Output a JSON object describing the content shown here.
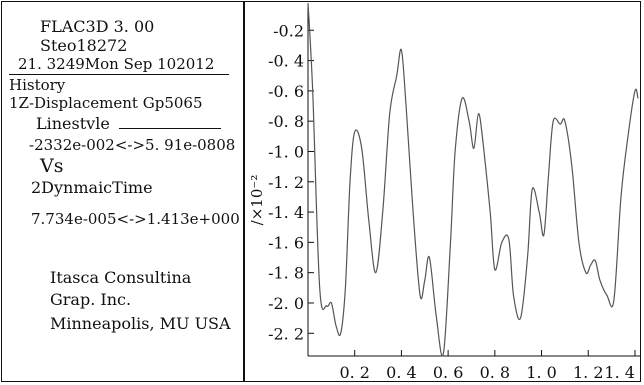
{
  "legend": {
    "software": "FLAC3D 3. 00",
    "step": "Steo18272",
    "timestamp": "21. 3249Mon Sep 102012",
    "history_heading": "History",
    "history_item": "1Z-Displacement Gp5065",
    "linestyle_label": "Linestvle",
    "y_range": "-2332e-002<->5. 91e-0808",
    "vs_label": "Vs",
    "x_quantity": "2DynmaicTime",
    "x_range": "7.734e-005<->1.413e+000",
    "company_1": "Itasca Consultina",
    "company_2": "Grap. Inc.",
    "company_3": "Minneapolis, MU  USA"
  },
  "chart_data": {
    "type": "line",
    "title": "",
    "xlabel": "",
    "ylabel": "/×10⁻²",
    "xlim": [
      0.0,
      1.413
    ],
    "ylim": [
      -2.35,
      -0.02
    ],
    "x_ticks": [
      0.2,
      0.4,
      0.6,
      0.8,
      1.0,
      1.2,
      1.4
    ],
    "x_tick_labels": [
      "0. 2",
      "0. 4",
      "0. 6",
      "0. 8",
      "1. 0",
      "1. 2",
      "1. 4"
    ],
    "y_ticks": [
      -0.2,
      -0.4,
      -0.6,
      -0.8,
      -1.0,
      -1.2,
      -1.4,
      -1.6,
      -1.8,
      -2.0,
      -2.2
    ],
    "y_tick_labels": [
      "-0.2",
      "-0. 4",
      "-0. 6",
      "-0. 8",
      "-1. 0",
      "-1. 2",
      "-1. 4",
      "-1. 6",
      "-1. 8",
      "-2. 0",
      "-2. 2"
    ],
    "grid": false,
    "line_color": "#555555",
    "series": [
      {
        "x": [
          0.0,
          0.02,
          0.05,
          0.08,
          0.1,
          0.12,
          0.14,
          0.16,
          0.18,
          0.2,
          0.23,
          0.26,
          0.29,
          0.32,
          0.35,
          0.38,
          0.4,
          0.42,
          0.45,
          0.48,
          0.5,
          0.52,
          0.55,
          0.58,
          0.61,
          0.63,
          0.66,
          0.69,
          0.71,
          0.73,
          0.75,
          0.78,
          0.8,
          0.83,
          0.86,
          0.88,
          0.91,
          0.94,
          0.96,
          0.99,
          1.01,
          1.03,
          1.05,
          1.08,
          1.1,
          1.13,
          1.16,
          1.19,
          1.21,
          1.23,
          1.25,
          1.28,
          1.31,
          1.34,
          1.37,
          1.4,
          1.413
        ],
        "y": [
          -0.02,
          -0.6,
          -1.9,
          -2.02,
          -2.0,
          -2.15,
          -2.2,
          -1.9,
          -1.2,
          -0.87,
          -0.98,
          -1.45,
          -1.8,
          -1.4,
          -0.75,
          -0.5,
          -0.33,
          -0.7,
          -1.4,
          -1.95,
          -1.85,
          -1.7,
          -2.1,
          -2.33,
          -1.6,
          -1.0,
          -0.65,
          -0.8,
          -0.98,
          -0.75,
          -0.95,
          -1.4,
          -1.78,
          -1.6,
          -1.58,
          -1.95,
          -2.1,
          -1.7,
          -1.25,
          -1.4,
          -1.55,
          -1.15,
          -0.8,
          -0.82,
          -0.8,
          -1.1,
          -1.6,
          -1.8,
          -1.75,
          -1.72,
          -1.85,
          -1.95,
          -1.98,
          -1.3,
          -0.9,
          -0.6,
          -0.65
        ]
      }
    ]
  }
}
